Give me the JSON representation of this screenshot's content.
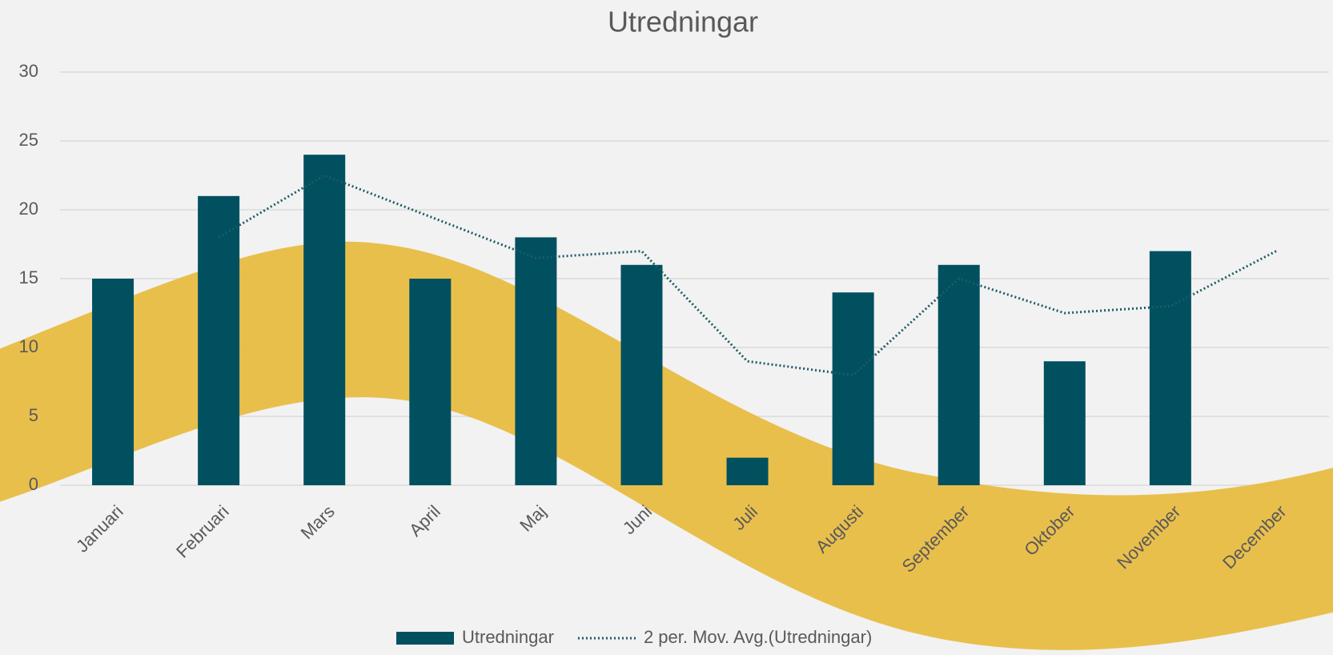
{
  "chart_data": {
    "type": "bar",
    "title": "Utredningar",
    "categories": [
      "Januari",
      "Februari",
      "Mars",
      "April",
      "Maj",
      "Juni",
      "Juli",
      "Augusti",
      "September",
      "Oktober",
      "November",
      "December"
    ],
    "series": [
      {
        "name": "Utredningar",
        "type": "bar",
        "color": "#005060",
        "values": [
          15,
          21,
          24,
          15,
          18,
          16,
          2,
          14,
          16,
          9,
          17,
          null
        ]
      },
      {
        "name": "2 per. Mov. Avg.(Utredningar)",
        "type": "line",
        "style": "dotted",
        "color": "#1f5a68",
        "values": [
          null,
          18,
          22.5,
          19.5,
          16.5,
          17,
          9,
          8,
          15,
          12.5,
          13,
          17
        ]
      }
    ],
    "ylim": [
      0,
      30
    ],
    "yticks": [
      0,
      5,
      10,
      15,
      20,
      25,
      30
    ],
    "grid": true,
    "legend": "bottom"
  }
}
